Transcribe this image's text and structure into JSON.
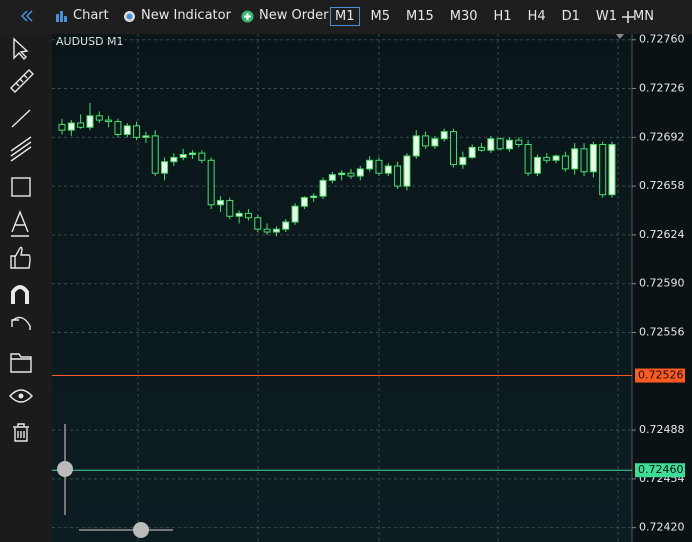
{
  "toolbar": {
    "buttons": [
      "Chart",
      "New Indicator",
      "New Order"
    ],
    "timeframes": [
      "M1",
      "M5",
      "M15",
      "M30",
      "H1",
      "H4",
      "D1",
      "W1",
      "MN"
    ],
    "active_timeframe": 0
  },
  "chart_data": {
    "type": "candlestick",
    "title": "AUDUSD M1",
    "categories": [
      null,
      null,
      null,
      null,
      null,
      null,
      null,
      null,
      null,
      null,
      null,
      null,
      null,
      null,
      null,
      null,
      null,
      null,
      null,
      null,
      null,
      null,
      null,
      null,
      null,
      null,
      null,
      null,
      null,
      null,
      null,
      null,
      null,
      null,
      null,
      null,
      null,
      null,
      null,
      null,
      null,
      null,
      null,
      null,
      null,
      null,
      null,
      null,
      null,
      null,
      null,
      null,
      null,
      null,
      null,
      null,
      null,
      null,
      null,
      null
    ],
    "ohlc": [
      [
        0.72701,
        0.72705,
        0.72694,
        0.72697
      ],
      [
        0.72697,
        0.72704,
        0.72693,
        0.72702
      ],
      [
        0.72702,
        0.72708,
        0.72698,
        0.72699
      ],
      [
        0.72699,
        0.72716,
        0.72697,
        0.72707
      ],
      [
        0.72707,
        0.7271,
        0.72702,
        0.72704
      ],
      [
        0.72704,
        0.72707,
        0.72699,
        0.72703
      ],
      [
        0.72703,
        0.72705,
        0.72692,
        0.72694
      ],
      [
        0.72694,
        0.72702,
        0.72692,
        0.727
      ],
      [
        0.727,
        0.72703,
        0.7269,
        0.72692
      ],
      [
        0.72692,
        0.72696,
        0.72688,
        0.72693
      ],
      [
        0.72693,
        0.72697,
        0.72665,
        0.72667
      ],
      [
        0.72667,
        0.72678,
        0.72662,
        0.72675
      ],
      [
        0.72675,
        0.72681,
        0.72672,
        0.72678
      ],
      [
        0.72678,
        0.72684,
        0.72676,
        0.7268
      ],
      [
        0.7268,
        0.72683,
        0.72677,
        0.72681
      ],
      [
        0.72681,
        0.72683,
        0.72674,
        0.72676
      ],
      [
        0.72676,
        0.72678,
        0.72642,
        0.72645
      ],
      [
        0.72645,
        0.72651,
        0.7264,
        0.72648
      ],
      [
        0.72648,
        0.7265,
        0.72635,
        0.72637
      ],
      [
        0.72637,
        0.72641,
        0.72632,
        0.72639
      ],
      [
        0.72639,
        0.72642,
        0.72634,
        0.72636
      ],
      [
        0.72636,
        0.72638,
        0.72626,
        0.72628
      ],
      [
        0.72628,
        0.72632,
        0.72624,
        0.72626
      ],
      [
        0.72626,
        0.7263,
        0.72623,
        0.72628
      ],
      [
        0.72628,
        0.72635,
        0.72626,
        0.72633
      ],
      [
        0.72633,
        0.72646,
        0.72631,
        0.72644
      ],
      [
        0.72644,
        0.72651,
        0.72642,
        0.7265
      ],
      [
        0.7265,
        0.72653,
        0.72647,
        0.72651
      ],
      [
        0.72651,
        0.72664,
        0.72649,
        0.72662
      ],
      [
        0.72662,
        0.72668,
        0.7266,
        0.72666
      ],
      [
        0.72666,
        0.72669,
        0.72662,
        0.72667
      ],
      [
        0.72667,
        0.7267,
        0.72663,
        0.72665
      ],
      [
        0.72665,
        0.72672,
        0.72662,
        0.7267
      ],
      [
        0.7267,
        0.72679,
        0.72668,
        0.72676
      ],
      [
        0.72676,
        0.72678,
        0.72665,
        0.72667
      ],
      [
        0.72667,
        0.72674,
        0.72665,
        0.72672
      ],
      [
        0.72672,
        0.72675,
        0.72656,
        0.72658
      ],
      [
        0.72658,
        0.72681,
        0.72655,
        0.72679
      ],
      [
        0.72679,
        0.72697,
        0.72677,
        0.72693
      ],
      [
        0.72693,
        0.72696,
        0.72684,
        0.72686
      ],
      [
        0.72686,
        0.72693,
        0.72684,
        0.72691
      ],
      [
        0.72691,
        0.72698,
        0.72689,
        0.72696
      ],
      [
        0.72696,
        0.72698,
        0.72671,
        0.72673
      ],
      [
        0.72673,
        0.72682,
        0.7267,
        0.72678
      ],
      [
        0.72678,
        0.72687,
        0.72677,
        0.72685
      ],
      [
        0.72685,
        0.72688,
        0.72682,
        0.72683
      ],
      [
        0.72683,
        0.72693,
        0.72681,
        0.72691
      ],
      [
        0.72691,
        0.72692,
        0.72683,
        0.72684
      ],
      [
        0.72684,
        0.72692,
        0.72682,
        0.7269
      ],
      [
        0.7269,
        0.72692,
        0.72685,
        0.72687
      ],
      [
        0.72687,
        0.7269,
        0.72665,
        0.72667
      ],
      [
        0.72667,
        0.7268,
        0.72665,
        0.72678
      ],
      [
        0.72678,
        0.72681,
        0.72674,
        0.72676
      ],
      [
        0.72676,
        0.7268,
        0.72674,
        0.72679
      ],
      [
        0.72679,
        0.72682,
        0.72668,
        0.7267
      ],
      [
        0.7267,
        0.72688,
        0.72666,
        0.72684
      ],
      [
        0.72684,
        0.72688,
        0.72665,
        0.72668
      ],
      [
        0.72668,
        0.72689,
        0.72664,
        0.72687
      ],
      [
        0.72687,
        0.72689,
        0.7265,
        0.72652
      ],
      [
        0.72652,
        0.72689,
        0.7265,
        0.72687
      ]
    ],
    "color": "#4ade6a",
    "ylim": [
      0.7241,
      0.72764
    ],
    "yticks": [
      {
        "value": 0.7276,
        "label": "0.72760"
      },
      {
        "value": 0.72726,
        "label": "0.72726"
      },
      {
        "value": 0.72692,
        "label": "0.72692"
      },
      {
        "value": 0.72658,
        "label": "0.72658"
      },
      {
        "value": 0.72624,
        "label": "0.72624"
      },
      {
        "value": 0.7259,
        "label": "0.72590"
      },
      {
        "value": 0.72556,
        "label": "0.72556"
      },
      {
        "value": 0.72488,
        "label": "0.72488"
      },
      {
        "value": 0.72454,
        "label": "0.72454"
      },
      {
        "value": 0.7242,
        "label": "0.72420"
      }
    ],
    "hlines": [
      {
        "value": 0.72526,
        "label": "0.72526",
        "color": "#ff5a1f"
      },
      {
        "value": 0.7246,
        "label": "0.72460",
        "color": "#3ddc97"
      }
    ],
    "grid": true
  }
}
